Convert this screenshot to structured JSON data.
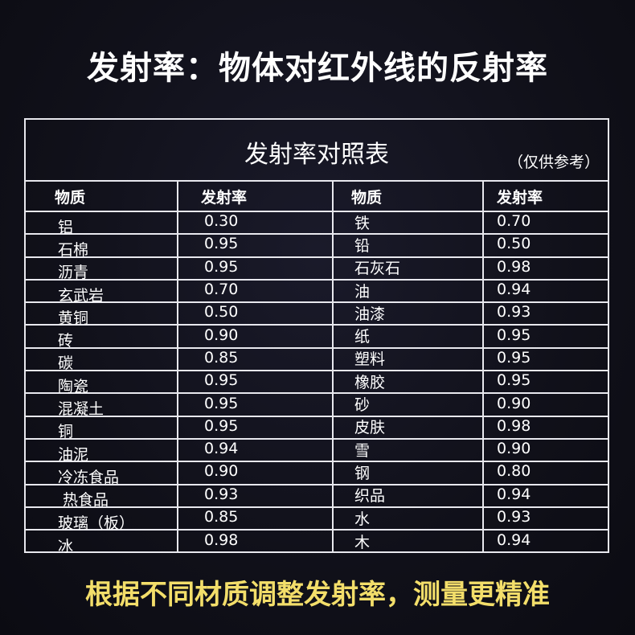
{
  "title": "发射率：物体对红外线的反射率",
  "table": {
    "caption": "发射率对照表",
    "note": "（仅供参考）",
    "headers": [
      "物质",
      "发射率",
      "物质",
      "发射率"
    ],
    "rows": [
      [
        "铝",
        "0.30",
        "铁",
        "0.70"
      ],
      [
        "石棉",
        "0.95",
        "铅",
        "0.50"
      ],
      [
        "沥青",
        "0.95",
        "石灰石",
        "0.98"
      ],
      [
        "玄武岩",
        "0.70",
        "油",
        "0.94"
      ],
      [
        "黄铜",
        "0.50",
        "油漆",
        "0.93"
      ],
      [
        "砖",
        "0.90",
        "纸",
        "0.95"
      ],
      [
        "碳",
        "0.85",
        "塑料",
        "0.95"
      ],
      [
        "陶瓷",
        "0.95",
        "橡胶",
        "0.95"
      ],
      [
        "混凝土",
        "0.95",
        "砂",
        "0.90"
      ],
      [
        "铜",
        "0.95",
        "皮肤",
        "0.98"
      ],
      [
        "油泥",
        "0.94",
        "雪",
        "0.90"
      ],
      [
        "冷冻食品",
        "0.90",
        "钢",
        "0.80"
      ],
      [
        " 热食品",
        "0.93",
        "织品",
        "0.94"
      ],
      [
        "玻璃（板）",
        "0.85",
        "水",
        "0.93"
      ],
      [
        "冰",
        "0.98",
        "木",
        "0.94"
      ]
    ]
  },
  "footer": "根据不同材质调整发射率，测量更精准",
  "colors": {
    "background": "#11111b",
    "text": "#ffffff",
    "footer": "#f3de6a",
    "grid": "#e8e8ee"
  }
}
